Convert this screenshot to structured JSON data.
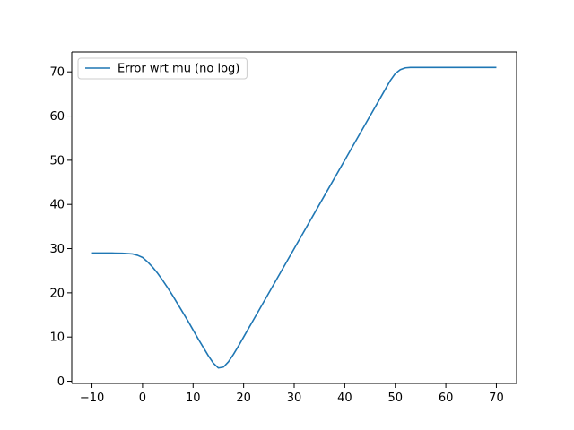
{
  "chart_data": {
    "type": "line",
    "title": "",
    "xlabel": "",
    "ylabel": "",
    "xlim": [
      -14,
      74
    ],
    "ylim": [
      -0.5,
      74.5
    ],
    "xticks": [
      -10,
      0,
      10,
      20,
      30,
      40,
      50,
      60,
      70
    ],
    "yticks": [
      0,
      10,
      20,
      30,
      40,
      50,
      60,
      70
    ],
    "xtick_labels": [
      "−10",
      "0",
      "10",
      "20",
      "30",
      "40",
      "50",
      "60",
      "70"
    ],
    "ytick_labels": [
      "0",
      "10",
      "20",
      "30",
      "40",
      "50",
      "60",
      "70"
    ],
    "grid": false,
    "legend_position": "upper-left",
    "series": [
      {
        "name": "Error wrt mu (no log)",
        "color": "#1f77b4",
        "x": [
          -10,
          -8,
          -6,
          -4,
          -2,
          -1,
          0,
          1,
          2,
          3,
          4,
          5,
          6,
          7,
          8,
          9,
          10,
          11,
          12,
          13,
          14,
          15,
          16,
          17,
          18,
          19,
          20,
          21,
          22,
          25,
          30,
          35,
          40,
          45,
          47,
          48,
          49,
          50,
          51,
          52,
          53,
          54,
          56,
          60,
          65,
          70
        ],
        "y": [
          29,
          29,
          29,
          28.95,
          28.8,
          28.5,
          28,
          27,
          25.8,
          24.4,
          22.8,
          21.1,
          19.3,
          17.4,
          15.5,
          13.6,
          11.6,
          9.6,
          7.7,
          5.8,
          4.1,
          3,
          3.2,
          4.4,
          6.1,
          8,
          10,
          12,
          14,
          20,
          30,
          40,
          50,
          60,
          64,
          66,
          68,
          69.6,
          70.5,
          70.9,
          71,
          71,
          71,
          71,
          71,
          71
        ]
      }
    ]
  }
}
